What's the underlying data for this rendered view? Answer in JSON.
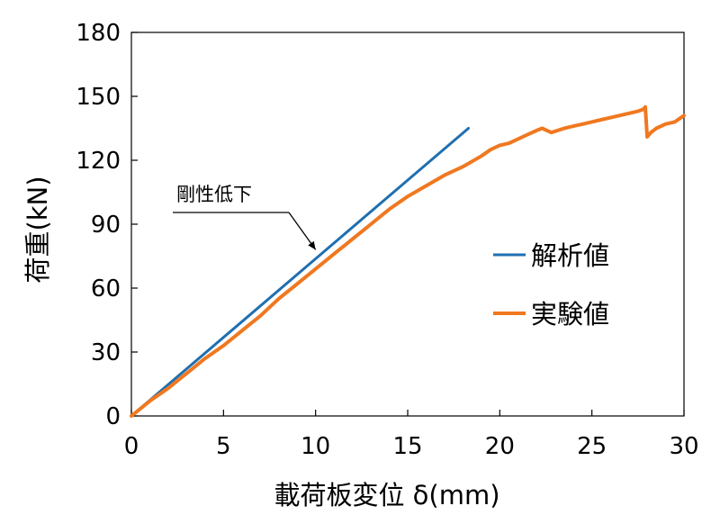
{
  "chart_data": {
    "type": "line",
    "title": "",
    "xlabel": "載荷板変位 δ(mm)",
    "ylabel": "荷重(kN)",
    "xlim": [
      0,
      30
    ],
    "ylim": [
      0,
      180
    ],
    "xticks": [
      0,
      5,
      10,
      15,
      20,
      25,
      30
    ],
    "yticks": [
      0,
      30,
      60,
      90,
      120,
      150,
      180
    ],
    "grid": false,
    "legend_position": "right",
    "series": [
      {
        "name": "解析値",
        "color": "#1f6fb0",
        "x": [
          0,
          18.3
        ],
        "y": [
          0,
          135
        ]
      },
      {
        "name": "実験値",
        "color": "#f07820",
        "x": [
          0,
          1,
          2,
          3,
          4,
          5,
          6,
          7,
          8,
          9,
          10,
          11,
          12,
          13,
          14,
          15,
          16,
          17,
          18,
          19,
          19.5,
          20,
          20.5,
          21,
          21.5,
          22,
          22.3,
          22.8,
          23.5,
          24,
          24.5,
          25,
          25.5,
          26,
          26.5,
          27,
          27.5,
          27.8,
          27.9,
          28,
          28.2,
          28.5,
          29,
          29.5,
          30
        ],
        "y": [
          0,
          7,
          13,
          20,
          27,
          33,
          40,
          47,
          55,
          62,
          69,
          76,
          83,
          90,
          97,
          103,
          108,
          113,
          117,
          122,
          125,
          127,
          128,
          130,
          132,
          134,
          135,
          133,
          135,
          136,
          137,
          138,
          139,
          140,
          141,
          142,
          143,
          144,
          145,
          131,
          133,
          135,
          137,
          138,
          141
        ]
      }
    ],
    "annotations": [
      {
        "text": "剛性低下",
        "arrow_to": {
          "x": 10,
          "y": 78
        }
      }
    ]
  }
}
